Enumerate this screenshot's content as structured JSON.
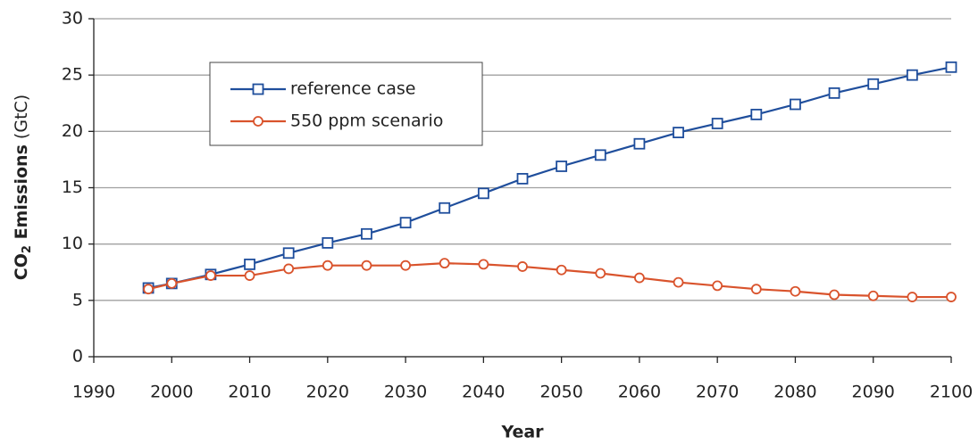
{
  "chart_data": {
    "type": "line",
    "ylabel": {
      "main": "CO",
      "sub": "2",
      "rest": " Emissions",
      "unit": " (GtC)"
    },
    "xlabel": "Year",
    "x": [
      1997,
      2000,
      2005,
      2010,
      2015,
      2020,
      2025,
      2030,
      2035,
      2040,
      2045,
      2050,
      2055,
      2060,
      2065,
      2070,
      2075,
      2080,
      2085,
      2090,
      2095,
      2100
    ],
    "series": [
      {
        "name": "reference case",
        "color": "#1f4e9c",
        "marker": "square",
        "values": [
          6.1,
          6.5,
          7.3,
          8.2,
          9.2,
          10.1,
          10.9,
          11.9,
          13.2,
          14.5,
          15.8,
          16.9,
          17.9,
          18.9,
          19.9,
          20.7,
          21.5,
          22.4,
          23.4,
          24.2,
          25.0,
          25.7
        ]
      },
      {
        "name": "550 ppm scenario",
        "color": "#d9532c",
        "marker": "circle",
        "values": [
          6.0,
          6.5,
          7.2,
          7.2,
          7.8,
          8.1,
          8.1,
          8.1,
          8.3,
          8.2,
          8.0,
          7.7,
          7.4,
          7.0,
          6.6,
          6.3,
          6.0,
          5.8,
          5.5,
          5.4,
          5.3,
          5.3
        ]
      }
    ],
    "xlim": [
      1990,
      2100
    ],
    "xticks": [
      1990,
      2000,
      2010,
      2020,
      2030,
      2040,
      2050,
      2060,
      2070,
      2080,
      2090,
      2100
    ],
    "ylim": [
      0,
      30
    ],
    "yticks": [
      0,
      5,
      10,
      15,
      20,
      25,
      30
    ],
    "grid": true
  }
}
